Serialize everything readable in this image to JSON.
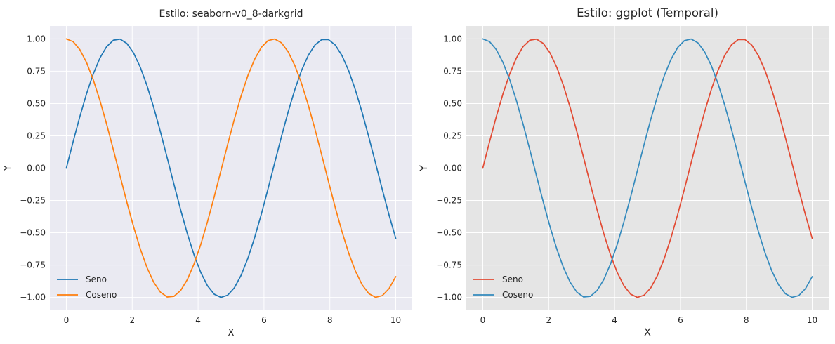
{
  "chart_data": [
    {
      "type": "line",
      "title": "Estilo: seaborn-v0_8-darkgrid",
      "xlabel": "X",
      "ylabel": "Y",
      "xlim": [
        -0.5,
        10.5
      ],
      "ylim": [
        -1.1,
        1.1
      ],
      "xticks": [
        0,
        2,
        4,
        6,
        8,
        10
      ],
      "yticks": [
        1.0,
        0.75,
        0.5,
        0.25,
        0.0,
        -0.25,
        -0.5,
        -0.75,
        -1.0
      ],
      "xtick_labels": [
        "0",
        "2",
        "4",
        "6",
        "8",
        "10"
      ],
      "ytick_labels": [
        "1.00",
        "0.75",
        "0.50",
        "0.25",
        "0.00",
        "−0.25",
        "−0.50",
        "−0.75",
        "−1.00"
      ],
      "grid": true,
      "background": "#eaeaf2",
      "grid_color": "#ffffff",
      "legend_position": "lower-left",
      "x": {
        "start": 0,
        "stop": 10,
        "count": 50
      },
      "series": [
        {
          "name": "Seno",
          "function": "sin(x)",
          "color": "#1f77b4"
        },
        {
          "name": "Coseno",
          "function": "cos(x)",
          "color": "#ff7f0e"
        }
      ]
    },
    {
      "type": "line",
      "title": "Estilo: ggplot (Temporal)",
      "xlabel": "X",
      "ylabel": "Y",
      "xlim": [
        -0.5,
        10.5
      ],
      "ylim": [
        -1.1,
        1.1
      ],
      "xticks": [
        0,
        2,
        4,
        6,
        8,
        10
      ],
      "yticks": [
        1.0,
        0.75,
        0.5,
        0.25,
        0.0,
        -0.25,
        -0.5,
        -0.75,
        -1.0
      ],
      "xtick_labels": [
        "0",
        "2",
        "4",
        "6",
        "8",
        "10"
      ],
      "ytick_labels": [
        "1.00",
        "0.75",
        "0.50",
        "0.25",
        "0.00",
        "−0.25",
        "−0.50",
        "−0.75",
        "−1.00"
      ],
      "grid": true,
      "background": "#e5e5e5",
      "grid_color": "#ffffff",
      "legend_position": "lower-left",
      "x": {
        "start": 0,
        "stop": 10,
        "count": 50
      },
      "series": [
        {
          "name": "Seno",
          "function": "sin(x)",
          "color": "#e24a33"
        },
        {
          "name": "Coseno",
          "function": "cos(x)",
          "color": "#348abd"
        }
      ]
    }
  ]
}
